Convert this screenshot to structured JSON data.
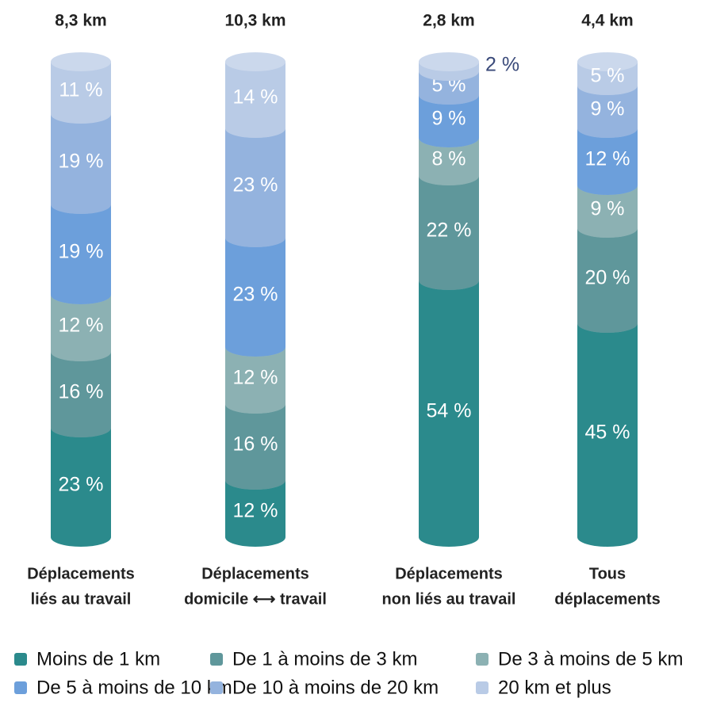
{
  "chart_data": {
    "type": "bar",
    "stacked": true,
    "categories": [
      [
        "Déplacements",
        "liés au travail"
      ],
      [
        "Déplacements",
        "domicile ⟷ travail"
      ],
      [
        "Déplacements",
        "non liés au travail"
      ],
      [
        "Tous",
        "déplacements"
      ]
    ],
    "total_labels": [
      "8,3 km",
      "10,3 km",
      "2,8 km",
      "4,4 km"
    ],
    "ylim": [
      0,
      100
    ],
    "series": [
      {
        "name": "Moins de 1 km",
        "color": "#2b8a8c",
        "values": [
          23,
          12,
          54,
          45
        ],
        "value_labels": [
          "23 %",
          "12 %",
          "54 %",
          "45 %"
        ]
      },
      {
        "name": "De 1 à moins de 3 km",
        "color": "#5f979b",
        "values": [
          16,
          16,
          22,
          20
        ],
        "value_labels": [
          "16 %",
          "16 %",
          "22 %",
          "20 %"
        ]
      },
      {
        "name": "De 3 à moins de 5 km",
        "color": "#8cb1b3",
        "values": [
          12,
          12,
          8,
          9
        ],
        "value_labels": [
          "12 %",
          "12 %",
          "8 %",
          "9 %"
        ]
      },
      {
        "name": "De 5 à moins de 10 km",
        "color": "#6c9fdb",
        "values": [
          19,
          23,
          9,
          12
        ],
        "value_labels": [
          "19 %",
          "23 %",
          "9 %",
          "12 %"
        ]
      },
      {
        "name": "De 10 à moins de 20 km",
        "color": "#94b3de",
        "values": [
          19,
          23,
          5,
          9
        ],
        "value_labels": [
          "19 %",
          "23 %",
          "5 %",
          "9 %"
        ]
      },
      {
        "name": "20 km et plus",
        "color": "#b9cbe6",
        "values": [
          11,
          14,
          2,
          5
        ],
        "value_labels": [
          "11 %",
          "14 %",
          "2 %",
          "5 %"
        ]
      }
    ]
  }
}
